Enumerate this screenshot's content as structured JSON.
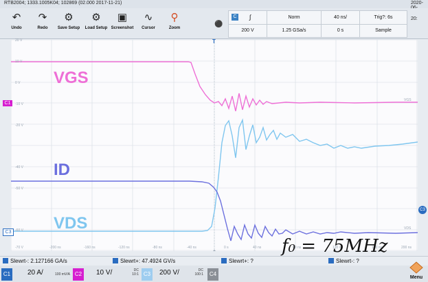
{
  "window": {
    "title": "RTB2004; 1333.1005K04; 102869 (02.000 2017-11-21)",
    "date_top": "2020-06-",
    "date_bottom": "20:"
  },
  "toolbar": {
    "undo": "Undo",
    "redo": "Redo",
    "save_setup": "Save Setup",
    "load_setup": "Load Setup",
    "screenshot": "Screenshot",
    "cursor": "Cursor",
    "zoom": "Zoom"
  },
  "status": {
    "ch_pill": "C",
    "edge": "∫",
    "mode": "Norm",
    "timebase": "40 ns/",
    "trig": "Trig?: 6s",
    "volts": "200 V",
    "rate": "1.25 GSa/s",
    "offset": "0 s",
    "acq": "Sample"
  },
  "traces": {
    "vgs": {
      "label": "VGS",
      "color": "#ee6fd6"
    },
    "id": {
      "label": "ID",
      "color": "#6b6fde"
    },
    "vds": {
      "label": "VDS",
      "color": "#7fc6ef"
    },
    "formula": "f₀ = 75MHz"
  },
  "axis": {
    "y_labels": [
      "20 V",
      "10 V",
      "0 V",
      "-10 V",
      "-20 V",
      "-40 V",
      "-50 V",
      "-60 V",
      "-70 V"
    ],
    "x_labels": [
      "-200 ns",
      "-160 ns",
      "-120 ns",
      "-80 ns",
      "-40 ns",
      "0 s",
      "40 ns",
      "80 ns",
      "120 ns",
      "160 ns",
      "200 ns"
    ],
    "right_vgs": "VGS",
    "right_vds": "VDS"
  },
  "markers": {
    "c1": "C1",
    "c3": "C3",
    "trigger_t": "T",
    "right_c3": "C3"
  },
  "measurements": [
    "Slewrt-: 2.127166 GA/s",
    "Slewrt+: 47.4924 GV/s",
    "Slewrt+: ?",
    "Slewrt-: ?"
  ],
  "channels": {
    "c1": {
      "tag": "C1",
      "value": "20 A/",
      "sub1": "",
      "sub2": "100 mV/A",
      "color": "#2a6cc0"
    },
    "c2": {
      "tag": "C2",
      "value": "10 V/",
      "sub1": "DC",
      "sub2": "10:1",
      "color": "#d61fd0"
    },
    "c3": {
      "tag": "C3",
      "value": "200 V/",
      "sub1": "DC",
      "sub2": "100:1",
      "color": "#9ecdf0"
    },
    "c4": {
      "tag": "C4",
      "color": "#8a8f96"
    }
  },
  "menu": {
    "label": "Menu"
  }
}
